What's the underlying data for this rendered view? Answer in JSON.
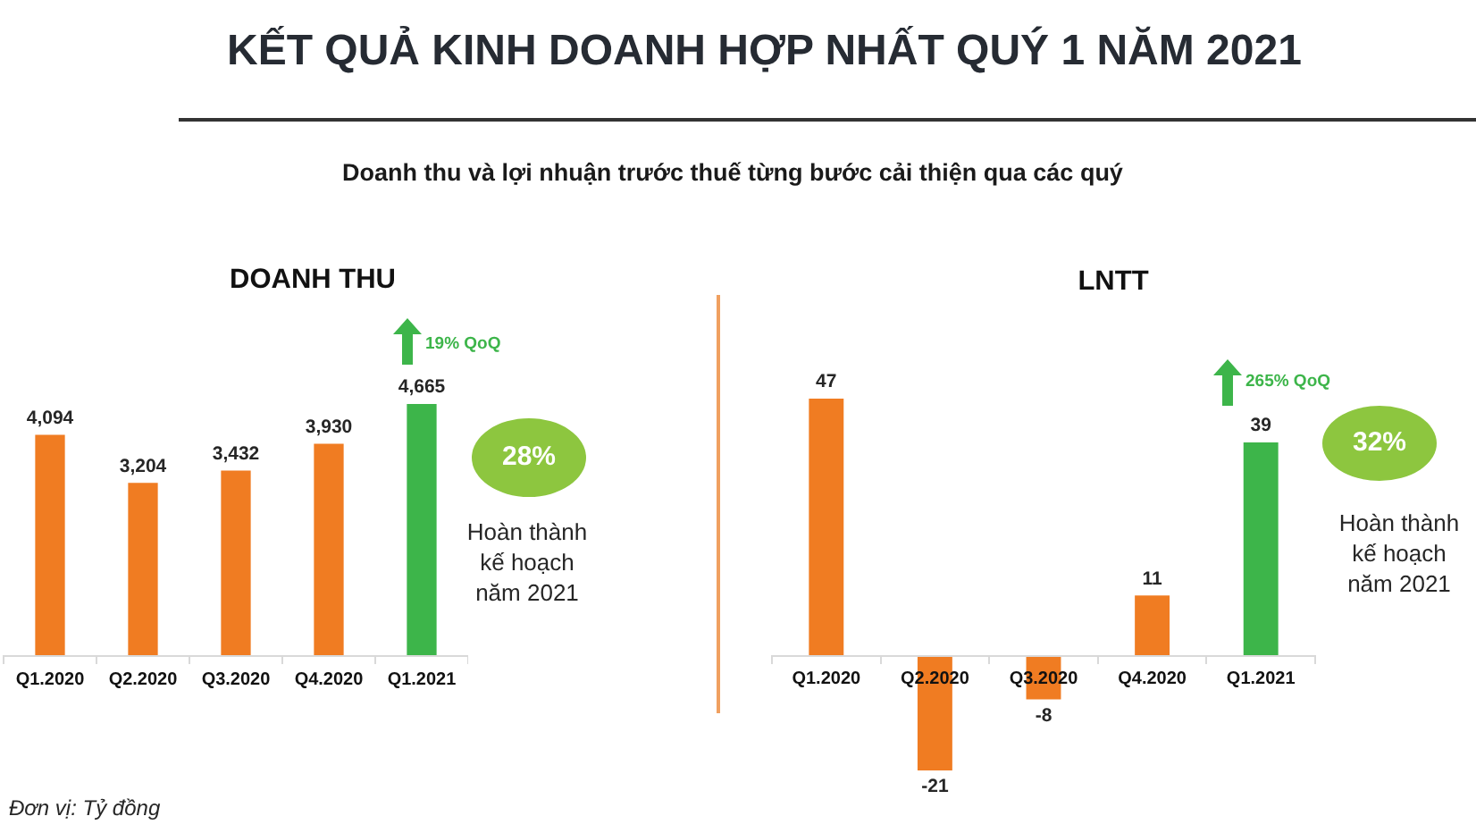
{
  "chart_data": [
    {
      "type": "other",
      "title": "KẾT QUẢ KINH DOANH HỢP NHẤT QUÝ 1 NĂM 2021",
      "subtitle": "Doanh thu và lợi nhuận trước thuế từng bước cải thiện qua các quý"
    },
    {
      "type": "bar",
      "title": "DOANH THU",
      "categories": [
        "Q1.2020",
        "Q2.2020",
        "Q3.2020",
        "Q4.2020",
        "Q1.2021"
      ],
      "values": [
        4094,
        3204,
        3432,
        3930,
        4665
      ],
      "colors": [
        "#f07c22",
        "#f07c22",
        "#f07c22",
        "#f07c22",
        "#3db54a"
      ],
      "value_labels": [
        "4,094",
        "3,204",
        "3,432",
        "3,930",
        "4,665"
      ],
      "annotations": [
        "19% QoQ",
        "28%",
        "Hoàn thành kế hoạch năm 2021",
        "Đơn vị: Tỷ đồng"
      ]
    },
    {
      "type": "bar",
      "title": "LNTT",
      "categories": [
        "Q1.2020",
        "Q2.2020",
        "Q3.2020",
        "Q4.2020",
        "Q1.2021"
      ],
      "values": [
        47,
        -21,
        -8,
        11,
        39
      ],
      "colors": [
        "#f07c22",
        "#f07c22",
        "#f07c22",
        "#f07c22",
        "#3db54a"
      ],
      "value_labels": [
        "47",
        "-21",
        "-8",
        "11",
        "39"
      ],
      "annotations": [
        "265% QoQ",
        "32%",
        "Hoàn thành kế hoạch năm 2021"
      ]
    }
  ]
}
